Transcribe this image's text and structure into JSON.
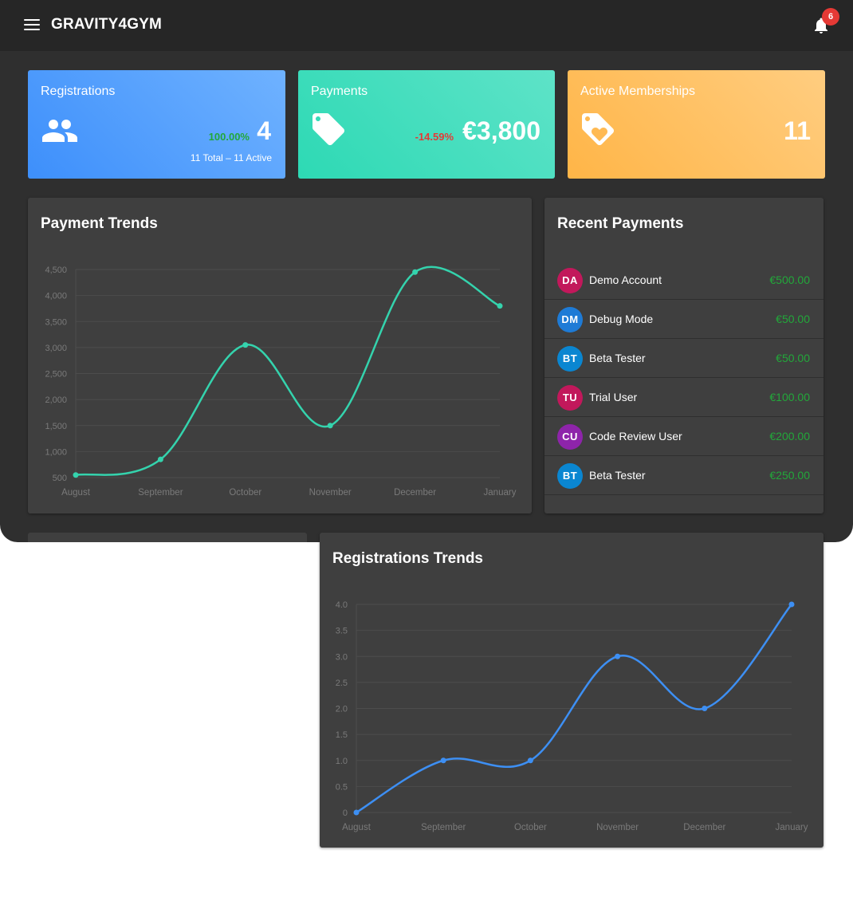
{
  "app": {
    "brand": "GRAVITY4GYM",
    "notification_count": "6"
  },
  "stats": {
    "registrations": {
      "label": "Registrations",
      "value": "4",
      "pct": "100.00%",
      "sub": "11 Total – 11 Active",
      "icon": "users-icon"
    },
    "payments": {
      "label": "Payments",
      "value": "€3,800",
      "pct": "-14.59%",
      "icon": "tag-icon"
    },
    "memberships": {
      "label": "Active Memberships",
      "value": "11",
      "icon": "heart-tag-icon"
    }
  },
  "payment_trends": {
    "title": "Payment Trends"
  },
  "recent_payments": {
    "title": "Recent Payments",
    "items": [
      {
        "initials": "DA",
        "name": "Demo Account",
        "amount": "€500.00",
        "color": "#c2185b"
      },
      {
        "initials": "DM",
        "name": "Debug Mode",
        "amount": "€50.00",
        "color": "#1e7bd6"
      },
      {
        "initials": "BT",
        "name": "Beta Tester",
        "amount": "€50.00",
        "color": "#0a86d1"
      },
      {
        "initials": "TU",
        "name": "Trial User",
        "amount": "€100.00",
        "color": "#c2185b"
      },
      {
        "initials": "CU",
        "name": "Code Review User",
        "amount": "€200.00",
        "color": "#8e24aa"
      },
      {
        "initials": "BT",
        "name": "Beta Tester",
        "amount": "€250.00",
        "color": "#0a86d1"
      }
    ]
  },
  "registrations_trends": {
    "title": "Registrations Trends"
  },
  "colors": {
    "payments_line": "#34d3ad",
    "registrations_line": "#3d8ff3",
    "positive": "#22a83a",
    "negative": "#e53935"
  },
  "chart_data": [
    {
      "type": "line",
      "title": "Payment Trends",
      "categories": [
        "August",
        "September",
        "October",
        "November",
        "December",
        "January"
      ],
      "values": [
        550,
        850,
        3050,
        1500,
        4450,
        3800
      ],
      "ylim": [
        500,
        4500
      ],
      "yticks": [
        "500",
        "1,000",
        "1,500",
        "2,000",
        "2,500",
        "3,000",
        "3,500",
        "4,000",
        "4,500"
      ],
      "grid": true
    },
    {
      "type": "line",
      "title": "Registrations Trends",
      "categories": [
        "August",
        "September",
        "October",
        "November",
        "December",
        "January"
      ],
      "values": [
        0,
        1,
        1,
        3,
        2,
        4
      ],
      "ylim": [
        0,
        4
      ],
      "yticks": [
        "0",
        "0.5",
        "1.0",
        "1.5",
        "2.0",
        "2.5",
        "3.0",
        "3.5",
        "4.0"
      ],
      "grid": true
    }
  ]
}
